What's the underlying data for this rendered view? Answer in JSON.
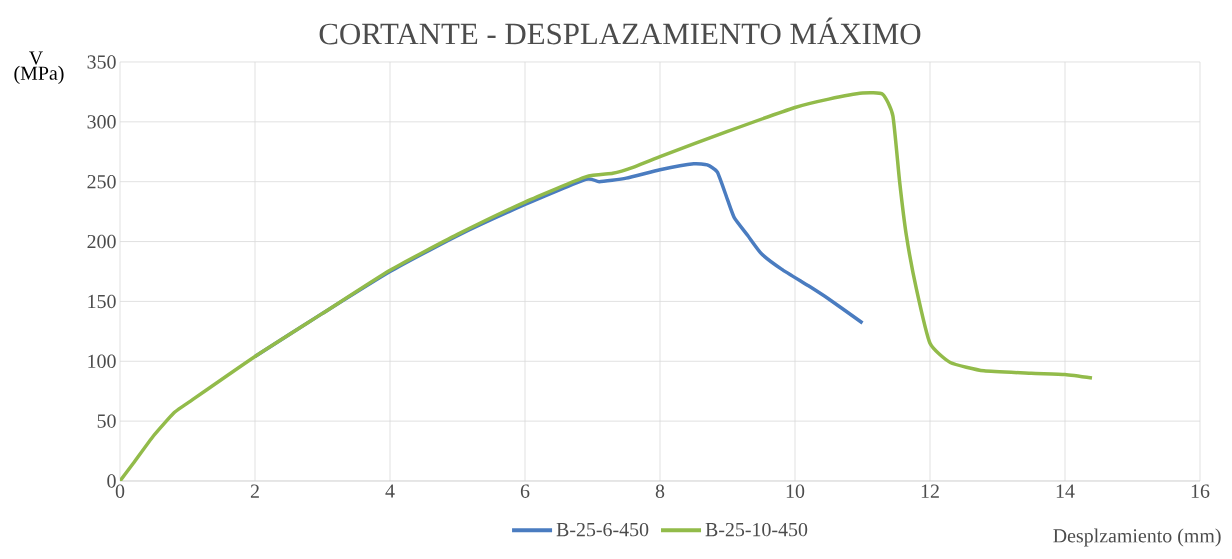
{
  "chart_data": {
    "type": "line",
    "title": "CORTANTE - DESPLAZAMIENTO MÁXIMO",
    "xlabel": "Desplzamiento (mm)",
    "ylabel": "V (MPa)",
    "xlim": [
      0,
      16
    ],
    "xticks": [
      0,
      2,
      4,
      6,
      8,
      10,
      12,
      14,
      16
    ],
    "ylim": [
      0,
      350
    ],
    "yticks": [
      0,
      50,
      100,
      150,
      200,
      250,
      300,
      350
    ],
    "grid": true,
    "legend": "bottom",
    "marker": "none",
    "line_style": "solid",
    "series": [
      {
        "name": "B-25-6-450",
        "color": "#4a7cc0",
        "x": [
          2,
          3,
          4,
          5,
          6,
          6.9,
          7.1,
          7.5,
          8,
          8.5,
          8.7,
          8.85,
          9.0,
          9.1,
          9.3,
          9.5,
          9.8,
          10.2,
          10.5,
          11
        ],
        "values": [
          104,
          140,
          175,
          205,
          231,
          252,
          250,
          253,
          260,
          265,
          264,
          258,
          235,
          220,
          205,
          190,
          177,
          163,
          152,
          132
        ]
      },
      {
        "name": "B-25-10-450",
        "color": "#92bb4a",
        "x": [
          0,
          0.2,
          0.5,
          0.8,
          1,
          2,
          3,
          4,
          5,
          6,
          6.9,
          7.3,
          7.6,
          8,
          9,
          10,
          10.5,
          11,
          11.3,
          11.45,
          11.55,
          11.65,
          11.8,
          12,
          12.3,
          12.8,
          13.5,
          14,
          14.4
        ],
        "values": [
          0,
          15,
          38,
          57,
          65,
          104,
          140,
          176,
          206,
          233,
          254,
          257,
          262,
          271,
          292,
          312,
          319,
          324,
          323,
          305,
          250,
          205,
          160,
          115,
          99,
          92,
          90,
          89,
          86
        ]
      }
    ]
  }
}
